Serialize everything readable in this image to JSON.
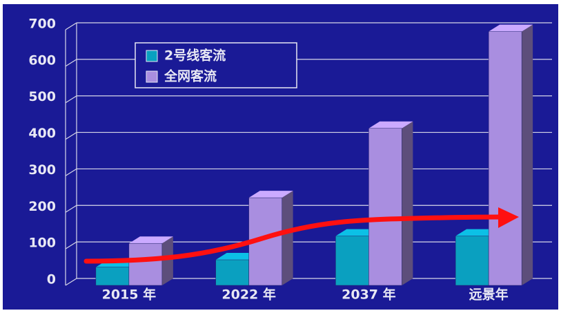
{
  "chart_data": {
    "type": "bar3d",
    "categories": [
      "2015 年",
      "2022 年",
      "2037 年",
      "远景年"
    ],
    "series": [
      {
        "name": "2号线客流",
        "color": "#0aa0c0",
        "values": [
          50,
          70,
          135,
          135
        ]
      },
      {
        "name": "全网客流",
        "color": "#a98ee0",
        "values": [
          115,
          240,
          430,
          695
        ]
      }
    ],
    "ylim": [
      0,
      700
    ],
    "yticks": [
      0,
      100,
      200,
      300,
      400,
      500,
      600,
      700
    ],
    "grid": true
  }
}
